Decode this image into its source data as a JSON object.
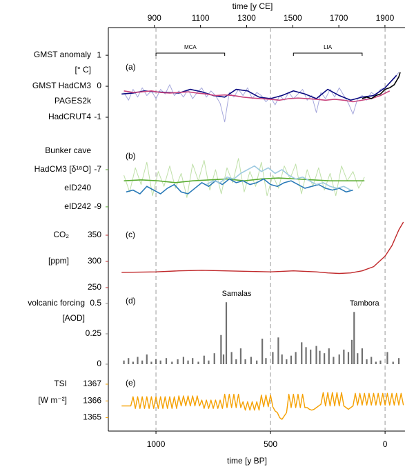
{
  "chart_data": [
    {
      "type": "line",
      "panel": "(a)",
      "ylabel": [
        "GMST anomaly",
        "[° C]"
      ],
      "label_color": "#000000",
      "xlim": [
        1208,
        -87
      ],
      "x2lim": [
        700,
        1987
      ],
      "x2ticks": [
        900,
        1100,
        1300,
        1500,
        1700,
        1900
      ],
      "x2label": "time [y CE]",
      "ylim": [
        -1.49,
        1.47
      ],
      "yticks": [
        -1,
        0,
        1
      ],
      "annotations": [
        {
          "text": "MCA",
          "x": [
            1000,
            700
          ]
        },
        {
          "text": "LIA",
          "x": [
            400,
            100
          ]
        }
      ],
      "series": [
        {
          "name": "GMST HadCM3",
          "color": "#0b0b80",
          "raw_color": "#a6a8dc",
          "x": [
            1140,
            1120,
            1100,
            1080,
            1060,
            1040,
            1020,
            1000,
            980,
            960,
            940,
            920,
            900,
            880,
            860,
            840,
            820,
            800,
            780,
            760,
            740,
            720,
            700,
            680,
            660,
            640,
            620,
            600,
            580,
            560,
            540,
            520,
            500,
            480,
            460,
            440,
            420,
            400,
            380,
            360,
            340,
            320,
            300,
            280,
            260,
            240,
            220,
            200,
            180,
            160,
            140,
            120,
            100,
            80,
            60,
            40,
            20,
            0,
            -20,
            -40,
            -60
          ],
          "values": [
            -0.2,
            -0.45,
            -0.1,
            -0.35,
            -0.05,
            -0.3,
            -0.15,
            -0.4,
            -0.1,
            -0.25,
            0.05,
            -0.3,
            -0.15,
            -0.35,
            -0.1,
            -0.4,
            -0.2,
            -0.05,
            -0.35,
            -0.15,
            -0.3,
            -0.55,
            -1.15,
            -0.2,
            -0.35,
            -0.1,
            -0.3,
            -0.05,
            -0.4,
            -0.2,
            -0.3,
            -0.5,
            -0.35,
            -0.6,
            -0.3,
            -0.45,
            -0.2,
            -0.4,
            -0.25,
            -0.1,
            -0.45,
            -0.3,
            -0.85,
            -0.2,
            -0.4,
            -0.1,
            -0.35,
            -0.05,
            -0.3,
            -0.55,
            -0.9,
            -0.4,
            -0.3,
            -0.45,
            -0.2,
            -0.3,
            -0.1,
            -0.05,
            0.1,
            0.25,
            0.45
          ],
          "smooth_x": [
            1150,
            1100,
            1050,
            1000,
            950,
            900,
            850,
            800,
            750,
            700,
            650,
            600,
            550,
            500,
            450,
            400,
            350,
            300,
            250,
            200,
            150,
            100,
            50,
            0,
            -50
          ],
          "smooth_values": [
            -0.25,
            -0.22,
            -0.15,
            -0.18,
            -0.2,
            -0.22,
            -0.1,
            -0.18,
            -0.3,
            -0.35,
            -0.1,
            -0.15,
            -0.35,
            -0.4,
            -0.3,
            -0.15,
            -0.25,
            -0.4,
            -0.1,
            -0.3,
            -0.45,
            -0.35,
            -0.3,
            -0.05,
            0.35
          ]
        },
        {
          "name": "PAGES2k",
          "color": "#c8437c",
          "x": [
            1140,
            1100,
            1060,
            1020,
            980,
            940,
            900,
            860,
            820,
            780,
            740,
            700,
            660,
            620,
            580,
            540,
            500,
            460,
            420,
            380,
            340,
            300,
            260,
            220,
            180,
            140,
            100,
            60,
            20,
            -20
          ],
          "values": [
            -0.15,
            -0.2,
            -0.18,
            -0.15,
            -0.2,
            -0.22,
            -0.2,
            -0.18,
            -0.22,
            -0.25,
            -0.3,
            -0.28,
            -0.3,
            -0.35,
            -0.38,
            -0.4,
            -0.42,
            -0.45,
            -0.4,
            -0.38,
            -0.4,
            -0.42,
            -0.45,
            -0.42,
            -0.45,
            -0.5,
            -0.45,
            -0.4,
            -0.3,
            -0.15
          ]
        },
        {
          "name": "HadCRUT4",
          "color": "#000000",
          "x": [
            100,
            80,
            60,
            40,
            20,
            0,
            -20,
            -40,
            -60,
            -66
          ],
          "values": [
            -0.4,
            -0.35,
            -0.4,
            -0.3,
            -0.25,
            -0.1,
            -0.05,
            0.05,
            0.3,
            0.45
          ]
        }
      ]
    },
    {
      "type": "line",
      "panel": "(b)",
      "legend_title": "Bunker cave",
      "label_color": "#000000",
      "xlim": [
        1208,
        -87
      ],
      "ylim": [
        -9.56,
        -5.48
      ],
      "yticks": [
        -7,
        -9
      ],
      "tick_color": "#5aac32",
      "series": [
        {
          "name": "HadCM3 [δ¹⁸O]",
          "color": "#5aac32",
          "raw_color": "#bfe0a8",
          "x": [
            1140,
            1115,
            1090,
            1065,
            1040,
            1015,
            990,
            965,
            940,
            915,
            890,
            865,
            840,
            815,
            790,
            765,
            740,
            715,
            690,
            665,
            640,
            615,
            590,
            565,
            540,
            515,
            490,
            465,
            440,
            415,
            390,
            365,
            340,
            315,
            290,
            265,
            240,
            215,
            190,
            165,
            140,
            115,
            90
          ],
          "values": [
            -7.3,
            -8.2,
            -6.9,
            -7.8,
            -6.6,
            -8.4,
            -7.1,
            -7.9,
            -6.8,
            -8.0,
            -7.2,
            -8.5,
            -6.7,
            -7.6,
            -6.5,
            -8.1,
            -7.0,
            -8.3,
            -6.9,
            -7.7,
            -6.4,
            -8.2,
            -7.1,
            -7.9,
            -6.6,
            -8.4,
            -7.3,
            -8.0,
            -6.8,
            -7.5,
            -6.7,
            -8.3,
            -7.0,
            -7.9,
            -6.9,
            -8.1,
            -7.2,
            -8.4,
            -6.8,
            -7.6,
            -7.1,
            -8.0,
            -7.4
          ],
          "smooth_x": [
            1140,
            1065,
            990,
            915,
            840,
            765,
            690,
            615,
            540,
            465,
            390,
            315,
            240,
            165,
            90
          ],
          "smooth_values": [
            -7.6,
            -7.55,
            -7.6,
            -7.7,
            -7.6,
            -7.55,
            -7.5,
            -7.6,
            -7.5,
            -7.45,
            -7.5,
            -7.55,
            -7.6,
            -7.6,
            -7.6
          ]
        },
        {
          "name": "eID240",
          "color": "#2a7ab8",
          "x": [
            1130,
            1100,
            1070,
            1040,
            1010,
            980,
            950,
            920,
            890,
            860,
            830,
            800,
            770,
            740,
            710,
            680,
            650,
            620,
            590,
            560,
            530,
            500,
            470,
            440,
            410,
            380,
            350,
            320,
            290,
            260,
            230,
            200,
            170,
            140
          ],
          "values": [
            -8.2,
            -8.1,
            -8.3,
            -7.9,
            -8.1,
            -8.3,
            -8.0,
            -7.8,
            -8.2,
            -8.3,
            -8.0,
            -7.7,
            -7.9,
            -7.6,
            -7.8,
            -7.5,
            -7.7,
            -7.6,
            -7.8,
            -7.7,
            -7.5,
            -7.8,
            -7.9,
            -7.7,
            -7.6,
            -7.8,
            -8.0,
            -7.9,
            -7.8,
            -8.0,
            -8.1,
            -8.0,
            -8.2,
            -8.1
          ]
        },
        {
          "name": "eID242",
          "color": "#9ecae1",
          "x": [
            780,
            750,
            720,
            690,
            660,
            630,
            600,
            570,
            540,
            510,
            480,
            450,
            420,
            390,
            360,
            330,
            300,
            270,
            240,
            210,
            180,
            150
          ],
          "values": [
            -7.8,
            -7.6,
            -7.7,
            -7.4,
            -7.5,
            -7.2,
            -7.0,
            -6.8,
            -7.1,
            -6.9,
            -7.2,
            -7.0,
            -7.3,
            -7.5,
            -7.4,
            -7.6,
            -7.8,
            -7.7,
            -7.9,
            -8.0,
            -7.9,
            -8.1
          ]
        }
      ]
    },
    {
      "type": "line",
      "panel": "(c)",
      "ylabel": [
        "CO₂",
        "[ppm]"
      ],
      "label_color": "#c0282a",
      "color": "#c0282a",
      "xlim": [
        1208,
        -87
      ],
      "ylim": [
        239.5,
        377.6
      ],
      "yticks": [
        250,
        300,
        350
      ],
      "tick_color": "#c0282a",
      "x": [
        1150,
        1000,
        900,
        800,
        700,
        600,
        500,
        400,
        300,
        250,
        200,
        150,
        100,
        50,
        0,
        -30,
        -60,
        -80
      ],
      "values": [
        279,
        280,
        282,
        283,
        282,
        281,
        280,
        282,
        280,
        278,
        277,
        278,
        282,
        290,
        310,
        330,
        360,
        375
      ]
    },
    {
      "type": "bar",
      "panel": "(d)",
      "ylabel": [
        "volcanic forcing",
        "[AOD]"
      ],
      "label_color": "#8a8a8a",
      "color": "#707070",
      "xlim": [
        1208,
        -87
      ],
      "ylim": [
        0,
        0.585
      ],
      "yticks": [
        0,
        0.25,
        0.5
      ],
      "tick_color": "#8a8a8a",
      "x": [
        1140,
        1120,
        1100,
        1080,
        1060,
        1040,
        1020,
        1000,
        980,
        955,
        930,
        905,
        880,
        860,
        840,
        815,
        790,
        770,
        745,
        716,
        705,
        693,
        670,
        650,
        630,
        610,
        585,
        560,
        536,
        520,
        490,
        466,
        450,
        430,
        410,
        390,
        364,
        345,
        325,
        300,
        285,
        265,
        245,
        225,
        200,
        180,
        160,
        145,
        135,
        120,
        100,
        80,
        60,
        40,
        20,
        -10,
        -35,
        -60
      ],
      "values": [
        0.03,
        0.05,
        0.02,
        0.06,
        0.03,
        0.08,
        0.02,
        0.04,
        0.03,
        0.05,
        0.02,
        0.04,
        0.06,
        0.03,
        0.05,
        0.02,
        0.07,
        0.03,
        0.09,
        0.24,
        0.08,
        0.51,
        0.1,
        0.04,
        0.13,
        0.04,
        0.06,
        0.03,
        0.21,
        0.05,
        0.1,
        0.22,
        0.08,
        0.04,
        0.07,
        0.1,
        0.18,
        0.14,
        0.12,
        0.15,
        0.11,
        0.09,
        0.13,
        0.06,
        0.08,
        0.12,
        0.1,
        0.2,
        0.43,
        0.09,
        0.13,
        0.04,
        0.06,
        0.02,
        0.03,
        0.1,
        0.02,
        0.05
      ],
      "annotations": [
        {
          "text": "Samalas",
          "x": 693
        },
        {
          "text": "Tambora",
          "x": 135
        }
      ]
    },
    {
      "type": "line",
      "panel": "(e)",
      "ylabel": [
        "TSI",
        "[W m⁻²]"
      ],
      "label_color": "#f5a000",
      "color": "#f5a000",
      "xlim": [
        1208,
        -87
      ],
      "xticks": [
        1000,
        500,
        0
      ],
      "xlabel": "time [y BP]",
      "ylim": [
        1364.2,
        1367.7
      ],
      "yticks": [
        1365,
        1366,
        1367
      ],
      "tick_color": "#f5a000",
      "x": [
        1150,
        1130,
        1110,
        1100,
        1090,
        1080,
        1070,
        1060,
        1050,
        1040,
        1030,
        1020,
        1010,
        1000,
        990,
        980,
        970,
        960,
        950,
        940,
        930,
        920,
        910,
        900,
        890,
        880,
        870,
        860,
        850,
        840,
        830,
        820,
        810,
        800,
        790,
        780,
        770,
        760,
        750,
        740,
        730,
        720,
        710,
        700,
        690,
        680,
        670,
        660,
        650,
        640,
        630,
        620,
        610,
        600,
        590,
        580,
        570,
        560,
        550,
        540,
        530,
        520,
        510,
        500,
        490,
        480,
        470,
        460,
        450,
        440,
        430,
        420,
        410,
        400,
        390,
        380,
        370,
        360,
        350,
        340,
        330,
        320,
        310,
        300,
        290,
        280,
        270,
        260,
        250,
        240,
        230,
        220,
        210,
        200,
        190,
        180,
        170,
        160,
        150,
        140,
        130,
        120,
        110,
        100,
        90,
        80,
        70,
        60,
        50,
        40,
        30,
        20,
        10,
        0,
        -10,
        -20,
        -30,
        -40,
        -50,
        -60,
        -70,
        -80
      ],
      "values": [
        1365.7,
        1365.7,
        1365.7,
        1366.25,
        1365.55,
        1366.25,
        1365.55,
        1366.25,
        1365.55,
        1366.25,
        1365.55,
        1366.25,
        1365.55,
        1366.25,
        1365.55,
        1366.25,
        1365.55,
        1366.25,
        1365.55,
        1366.25,
        1365.55,
        1366.25,
        1365.55,
        1366.3,
        1365.7,
        1366.3,
        1365.7,
        1366.3,
        1365.7,
        1366.3,
        1365.7,
        1366.3,
        1365.7,
        1366.05,
        1365.55,
        1366.05,
        1365.55,
        1366.05,
        1365.55,
        1366.05,
        1365.55,
        1366.05,
        1365.55,
        1366.4,
        1365.6,
        1366.4,
        1365.6,
        1366.4,
        1365.6,
        1366.4,
        1365.6,
        1365.95,
        1365.45,
        1365.95,
        1365.45,
        1365.95,
        1365.45,
        1365.95,
        1365.45,
        1366.35,
        1365.65,
        1366.35,
        1365.65,
        1366.35,
        1365.65,
        1365.4,
        1365.3,
        1365.0,
        1364.9,
        1365.1,
        1365.3,
        1366.4,
        1365.6,
        1366.4,
        1365.6,
        1366.4,
        1365.6,
        1366.4,
        1365.6,
        1365.6,
        1365.5,
        1365.45,
        1365.5,
        1365.6,
        1365.7,
        1365.8,
        1366.5,
        1365.7,
        1366.5,
        1365.7,
        1366.5,
        1365.7,
        1366.5,
        1365.7,
        1366.5,
        1365.7,
        1365.6,
        1365.5,
        1365.6,
        1365.7,
        1366.45,
        1365.75,
        1366.45,
        1365.75,
        1366.45,
        1365.75,
        1366.45,
        1365.75,
        1366.45,
        1365.75,
        1366.45,
        1365.75,
        1366.45,
        1365.75,
        1366.45,
        1365.75,
        1366.45,
        1365.75,
        1366.45,
        1365.75,
        1366.45,
        1365.75
      ]
    }
  ]
}
